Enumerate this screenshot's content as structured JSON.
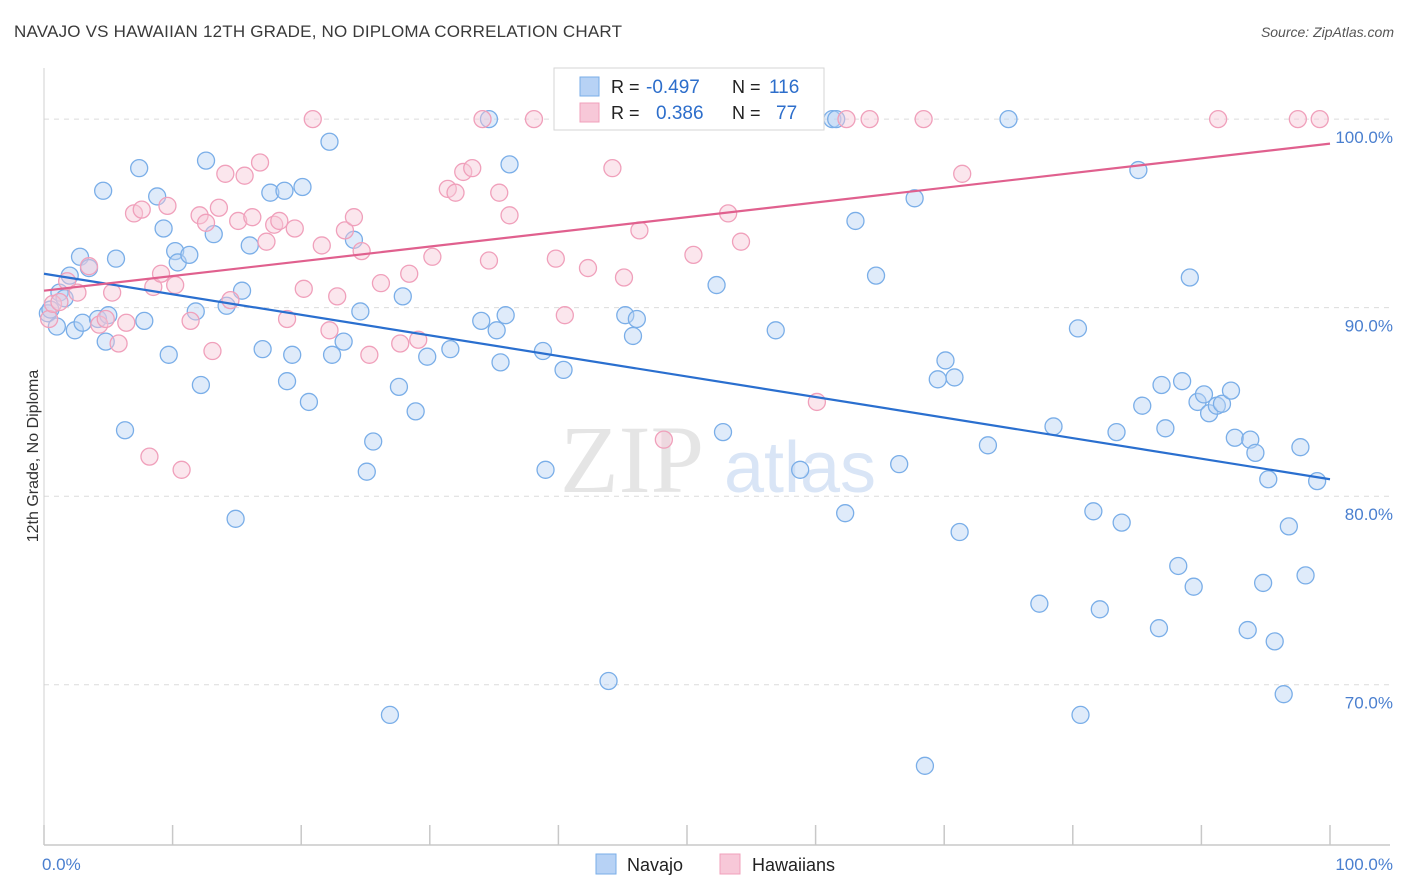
{
  "header": {
    "title": "NAVAJO VS HAWAIIAN 12TH GRADE, NO DIPLOMA CORRELATION CHART",
    "source": "Source: ZipAtlas.com"
  },
  "watermark": {
    "zip": "ZIP",
    "atlas": "atlas"
  },
  "legend": {
    "r_label": "R =",
    "n_label": "N =",
    "rows": [
      {
        "series": "Navajo",
        "r": "-0.497",
        "n": "116",
        "color": "#7aaee8"
      },
      {
        "series": "Hawaiians",
        "r": "0.386",
        "n": "77",
        "color": "#f0a0bb"
      }
    ]
  },
  "chart_data": {
    "type": "scatter",
    "ylabel": "12th Grade, No Diploma",
    "xlim": [
      0,
      100
    ],
    "ylim": [
      61.5,
      102.5
    ],
    "x_tick_labels": [
      {
        "value": 0,
        "label": "0.0%"
      },
      {
        "value": 100,
        "label": "100.0%"
      }
    ],
    "y_tick_labels": [
      {
        "value": 100,
        "label": "100.0%"
      },
      {
        "value": 90,
        "label": "90.0%"
      },
      {
        "value": 80,
        "label": "80.0%"
      },
      {
        "value": 70,
        "label": "70.0%"
      }
    ],
    "grid": true,
    "series": [
      {
        "name": "Navajo",
        "color": "#7aaee8",
        "fill": "#b7d2f5",
        "trend": {
          "x": [
            0,
            100
          ],
          "y": [
            91.8,
            80.9
          ],
          "color": "#2a6fcf"
        },
        "points": [
          [
            0.3,
            89.7
          ],
          [
            0.5,
            89.9
          ],
          [
            1,
            89
          ],
          [
            1.2,
            90.8
          ],
          [
            1.6,
            90.5
          ],
          [
            2,
            91.7
          ],
          [
            2.4,
            88.8
          ],
          [
            2.8,
            92.7
          ],
          [
            3,
            89.2
          ],
          [
            3.5,
            92.1
          ],
          [
            4.2,
            89.4
          ],
          [
            4.6,
            96.2
          ],
          [
            4.8,
            88.2
          ],
          [
            5,
            89.6
          ],
          [
            5.6,
            92.6
          ],
          [
            6.3,
            83.5
          ],
          [
            7.4,
            97.4
          ],
          [
            7.8,
            89.3
          ],
          [
            8.8,
            95.9
          ],
          [
            9.3,
            94.2
          ],
          [
            9.7,
            87.5
          ],
          [
            10.2,
            93
          ],
          [
            10.4,
            92.4
          ],
          [
            11.3,
            92.8
          ],
          [
            11.8,
            89.8
          ],
          [
            12.2,
            85.9
          ],
          [
            12.6,
            97.8
          ],
          [
            13.2,
            93.9
          ],
          [
            14.2,
            90.1
          ],
          [
            14.9,
            78.8
          ],
          [
            15.4,
            90.9
          ],
          [
            16,
            93.3
          ],
          [
            17,
            87.8
          ],
          [
            17.6,
            96.1
          ],
          [
            18.7,
            96.2
          ],
          [
            18.9,
            86.1
          ],
          [
            19.3,
            87.5
          ],
          [
            20.1,
            96.4
          ],
          [
            20.6,
            85
          ],
          [
            22.2,
            98.8
          ],
          [
            22.4,
            87.5
          ],
          [
            23.3,
            88.2
          ],
          [
            24.1,
            93.6
          ],
          [
            24.6,
            89.8
          ],
          [
            25.1,
            81.3
          ],
          [
            25.6,
            82.9
          ],
          [
            26.9,
            68.4
          ],
          [
            27.6,
            85.8
          ],
          [
            27.9,
            90.6
          ],
          [
            28.9,
            84.5
          ],
          [
            29.8,
            87.4
          ],
          [
            31.6,
            87.8
          ],
          [
            34,
            89.3
          ],
          [
            34.6,
            100
          ],
          [
            35.2,
            88.8
          ],
          [
            35.5,
            87.1
          ],
          [
            35.9,
            89.6
          ],
          [
            36.2,
            97.6
          ],
          [
            38.8,
            87.7
          ],
          [
            39,
            81.4
          ],
          [
            40.4,
            86.7
          ],
          [
            43.9,
            70.2
          ],
          [
            45.2,
            89.6
          ],
          [
            45.8,
            88.5
          ],
          [
            46.1,
            89.4
          ],
          [
            52.3,
            91.2
          ],
          [
            52.8,
            83.4
          ],
          [
            54.5,
            100
          ],
          [
            56.9,
            88.8
          ],
          [
            58.8,
            81.4
          ],
          [
            61.3,
            100
          ],
          [
            61.6,
            100
          ],
          [
            62.3,
            79.1
          ],
          [
            63.1,
            94.6
          ],
          [
            64.7,
            91.7
          ],
          [
            66.5,
            81.7
          ],
          [
            67.7,
            95.8
          ],
          [
            68.5,
            65.7
          ],
          [
            69.5,
            86.2
          ],
          [
            70.1,
            87.2
          ],
          [
            70.8,
            86.3
          ],
          [
            71.2,
            78.1
          ],
          [
            73.4,
            82.7
          ],
          [
            75,
            100
          ],
          [
            77.4,
            74.3
          ],
          [
            78.5,
            83.7
          ],
          [
            80.4,
            88.9
          ],
          [
            80.6,
            68.4
          ],
          [
            81.6,
            79.2
          ],
          [
            82.1,
            74
          ],
          [
            83.4,
            83.4
          ],
          [
            83.8,
            78.6
          ],
          [
            85.1,
            97.3
          ],
          [
            85.4,
            84.8
          ],
          [
            86.7,
            73
          ],
          [
            86.9,
            85.9
          ],
          [
            87.2,
            83.6
          ],
          [
            88.2,
            76.3
          ],
          [
            88.5,
            86.1
          ],
          [
            89.1,
            91.6
          ],
          [
            89.4,
            75.2
          ],
          [
            89.7,
            85
          ],
          [
            90.2,
            85.4
          ],
          [
            90.6,
            84.4
          ],
          [
            91.2,
            84.8
          ],
          [
            91.6,
            84.9
          ],
          [
            92.3,
            85.6
          ],
          [
            92.6,
            83.1
          ],
          [
            93.6,
            72.9
          ],
          [
            93.8,
            83
          ],
          [
            94.2,
            82.3
          ],
          [
            94.8,
            75.4
          ],
          [
            95.2,
            80.9
          ],
          [
            95.7,
            72.3
          ],
          [
            96.4,
            69.5
          ],
          [
            96.8,
            78.4
          ],
          [
            97.7,
            82.6
          ],
          [
            98.1,
            75.8
          ],
          [
            99,
            80.8
          ]
        ]
      },
      {
        "name": "Hawaiians",
        "color": "#f0a0bb",
        "fill": "#f7c8d8",
        "trend": {
          "x": [
            0,
            100
          ],
          "y": [
            90.9,
            98.7
          ],
          "color": "#e0608e"
        },
        "points": [
          [
            0.4,
            89.4
          ],
          [
            0.7,
            90.2
          ],
          [
            1.2,
            90.3
          ],
          [
            1.8,
            91.4
          ],
          [
            2.6,
            90.8
          ],
          [
            3.5,
            92.2
          ],
          [
            4.3,
            89.1
          ],
          [
            4.8,
            89.4
          ],
          [
            5.3,
            90.8
          ],
          [
            5.8,
            88.1
          ],
          [
            6.4,
            89.2
          ],
          [
            7,
            95
          ],
          [
            7.6,
            95.2
          ],
          [
            8.2,
            82.1
          ],
          [
            8.5,
            91.1
          ],
          [
            9.1,
            91.8
          ],
          [
            9.6,
            95.4
          ],
          [
            10.2,
            91.2
          ],
          [
            10.7,
            81.4
          ],
          [
            11.4,
            89.3
          ],
          [
            12.1,
            94.9
          ],
          [
            12.6,
            94.5
          ],
          [
            13.1,
            87.7
          ],
          [
            13.6,
            95.3
          ],
          [
            14.1,
            97.1
          ],
          [
            14.5,
            90.4
          ],
          [
            15.1,
            94.6
          ],
          [
            15.6,
            97
          ],
          [
            16.2,
            94.8
          ],
          [
            16.8,
            97.7
          ],
          [
            17.3,
            93.5
          ],
          [
            17.9,
            94.4
          ],
          [
            18.3,
            94.6
          ],
          [
            18.9,
            89.4
          ],
          [
            19.5,
            94.2
          ],
          [
            20.2,
            91
          ],
          [
            20.9,
            100
          ],
          [
            21.6,
            93.3
          ],
          [
            22.2,
            88.8
          ],
          [
            22.8,
            90.6
          ],
          [
            23.4,
            94.1
          ],
          [
            24.1,
            94.8
          ],
          [
            24.7,
            93
          ],
          [
            25.3,
            87.5
          ],
          [
            26.2,
            91.3
          ],
          [
            27.7,
            88.1
          ],
          [
            28.4,
            91.8
          ],
          [
            29.1,
            88.3
          ],
          [
            30.2,
            92.7
          ],
          [
            31.4,
            96.3
          ],
          [
            32,
            96.1
          ],
          [
            32.6,
            97.2
          ],
          [
            33.3,
            97.4
          ],
          [
            34.1,
            100
          ],
          [
            34.6,
            92.5
          ],
          [
            35.4,
            96.1
          ],
          [
            36.2,
            94.9
          ],
          [
            38.1,
            100
          ],
          [
            39.8,
            92.6
          ],
          [
            40.5,
            89.6
          ],
          [
            42.3,
            92.1
          ],
          [
            44.2,
            97.4
          ],
          [
            45.1,
            91.6
          ],
          [
            46.3,
            94.1
          ],
          [
            48.2,
            83
          ],
          [
            50.5,
            92.8
          ],
          [
            53.2,
            95
          ],
          [
            54.2,
            93.5
          ],
          [
            60.1,
            85
          ],
          [
            62.4,
            100
          ],
          [
            64.2,
            100
          ],
          [
            68.4,
            100
          ],
          [
            71.4,
            97.1
          ],
          [
            91.3,
            100
          ],
          [
            97.5,
            100
          ],
          [
            99.2,
            100
          ]
        ]
      }
    ]
  }
}
